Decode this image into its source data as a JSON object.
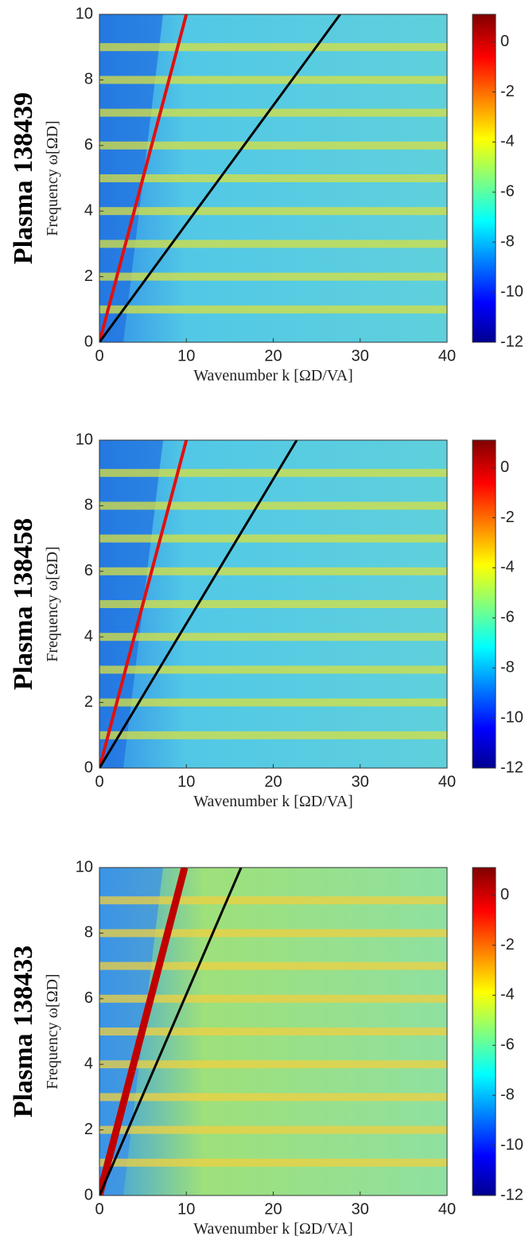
{
  "chart_data": [
    {
      "type": "spectrogram",
      "title": "Plasma 138439",
      "xlabel": "Wavenumber k [ΩD/VA]",
      "ylabel": "Frequency ω[ΩD]",
      "xlim": [
        0,
        40
      ],
      "ylim": [
        0,
        10
      ],
      "xticks": [
        0,
        10,
        20,
        30,
        40
      ],
      "yticks": [
        0,
        2,
        4,
        6,
        8,
        10
      ],
      "clim": [
        -12,
        1.1
      ],
      "cticks": [
        0,
        -2,
        -4,
        -6,
        -8,
        -10,
        -12
      ],
      "bands": [
        1,
        2,
        3,
        4,
        5,
        6,
        7,
        8,
        9
      ],
      "lines": [
        {
          "color": "#e01010",
          "x": [
            0,
            10
          ],
          "y": [
            0,
            10
          ]
        },
        {
          "color": "#000000",
          "x": [
            0,
            27.7
          ],
          "y": [
            0,
            10
          ]
        }
      ]
    },
    {
      "type": "spectrogram",
      "title": "Plasma 138458",
      "xlabel": "Wavenumber k [ΩD/VA]",
      "ylabel": "Frequency ω[ΩD]",
      "xlim": [
        0,
        40
      ],
      "ylim": [
        0,
        10
      ],
      "xticks": [
        0,
        10,
        20,
        30,
        40
      ],
      "yticks": [
        0,
        2,
        4,
        6,
        8,
        10
      ],
      "clim": [
        -12,
        1.1
      ],
      "cticks": [
        0,
        -2,
        -4,
        -6,
        -8,
        -10,
        -12
      ],
      "bands": [
        1,
        2,
        3,
        4,
        5,
        6,
        7,
        8,
        9
      ],
      "lines": [
        {
          "color": "#e01010",
          "x": [
            0,
            10
          ],
          "y": [
            0,
            10
          ]
        },
        {
          "color": "#000000",
          "x": [
            0,
            22.7
          ],
          "y": [
            0,
            10
          ]
        }
      ]
    },
    {
      "type": "spectrogram",
      "title": "Plasma 138433",
      "xlabel": "Wavenumber k [ΩD/VA]",
      "ylabel": "Frequency ω[ΩD]",
      "xlim": [
        0,
        40
      ],
      "ylim": [
        0,
        10
      ],
      "xticks": [
        0,
        10,
        20,
        30,
        40
      ],
      "yticks": [
        0,
        2,
        4,
        6,
        8,
        10
      ],
      "clim": [
        -12,
        1.1
      ],
      "cticks": [
        0,
        -2,
        -4,
        -6,
        -8,
        -10,
        -12
      ],
      "bands": [
        1,
        2,
        3,
        4,
        5,
        6,
        7,
        8,
        9
      ],
      "lines": [
        {
          "color": "#c00000",
          "x": [
            0,
            9.8
          ],
          "y": [
            0,
            10
          ]
        },
        {
          "color": "#000000",
          "x": [
            0,
            16.3
          ],
          "y": [
            0,
            10
          ]
        }
      ]
    }
  ]
}
